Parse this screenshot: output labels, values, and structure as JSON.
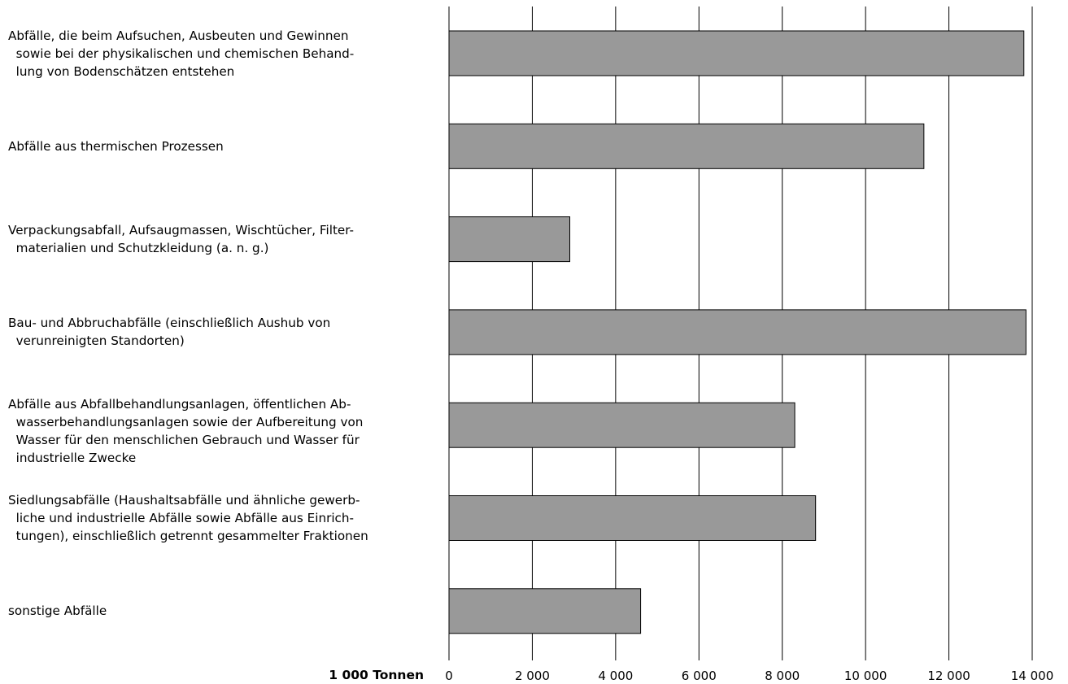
{
  "chart_data": {
    "type": "bar",
    "orientation": "horizontal",
    "categories": [
      [
        "Abfälle, die beim Aufsuchen, Ausbeuten und Gewinnen",
        "  sowie bei der physikalischen und chemischen Behand-",
        "  lung von Bodenschätzen entstehen"
      ],
      [
        "Abfälle aus thermischen Prozessen"
      ],
      [
        "Verpackungsabfall, Aufsaugmassen, Wischtücher, Filter-",
        "  materialien und Schutzkleidung (a. n. g.)"
      ],
      [
        "Bau- und Abbruchabfälle (einschließlich Aushub von",
        "  verunreinigten Standorten)"
      ],
      [
        "Abfälle aus Abfallbehandlungsanlagen, öffentlichen Ab-",
        "  wasserbehandlungsanlagen sowie der Aufbereitung von",
        "  Wasser für den menschlichen Gebrauch und Wasser für",
        "  industrielle Zwecke"
      ],
      [
        "Siedlungsabfälle (Haushaltsabfälle und ähnliche gewerb-",
        "  liche und industrielle Abfälle sowie Abfälle aus Einrich-",
        "  tungen), einschließlich getrennt gesammelter Fraktionen"
      ],
      [
        "sonstige Abfälle"
      ]
    ],
    "values": [
      13800,
      11400,
      2900,
      13850,
      8300,
      8800,
      4600
    ],
    "xlabel": "1 000 Tonnen",
    "xlim": [
      0,
      14000
    ],
    "xticks": [
      0,
      2000,
      4000,
      6000,
      8000,
      10000,
      12000,
      14000
    ],
    "xtick_labels": [
      "0",
      "2 000",
      "4 000",
      "6 000",
      "8 000",
      "10 000",
      "12 000",
      "14 000"
    ],
    "grid": "vertical",
    "colors": {
      "bar_fill": "#999999",
      "bar_stroke": "#000000",
      "grid": "#000000"
    }
  }
}
